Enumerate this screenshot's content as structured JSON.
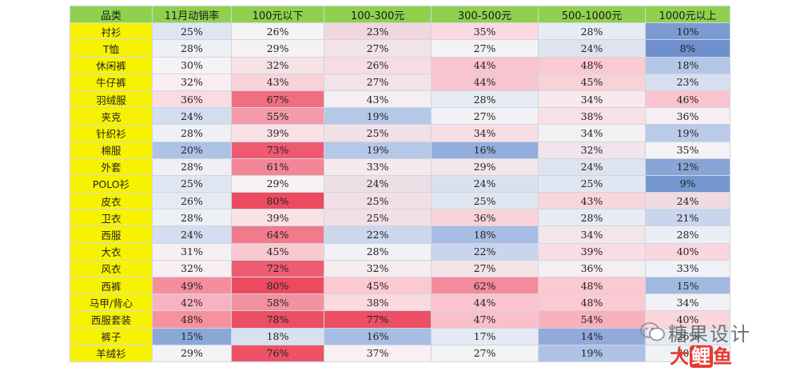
{
  "table": {
    "headers": [
      "品类",
      "11月动销率",
      "100元以下",
      "100-300元",
      "300-500元",
      "500-1000元",
      "1000元以上"
    ],
    "rows": [
      {
        "category": "衬衫",
        "values": [
          "25%",
          "26%",
          "23%",
          "35%",
          "28%",
          "10%"
        ],
        "bg": [
          "#dfe6f1",
          "#f4f3f6",
          "#f0d6de",
          "#fbd9e0",
          "#e7ebf4",
          "#7b9bd2"
        ],
        "red": [
          false,
          false,
          true,
          true,
          false,
          false
        ]
      },
      {
        "category": "T恤",
        "values": [
          "28%",
          "29%",
          "27%",
          "27%",
          "24%",
          "8%"
        ],
        "bg": [
          "#eef0f5",
          "#f6f2f4",
          "#f3e3e8",
          "#f3f2f5",
          "#dde4f0",
          "#6e90cc"
        ],
        "red": [
          false,
          false,
          true,
          false,
          false,
          false
        ]
      },
      {
        "category": "休闲裤",
        "values": [
          "30%",
          "32%",
          "26%",
          "44%",
          "48%",
          "18%"
        ],
        "bg": [
          "#f6f3f5",
          "#f4e2e6",
          "#f5dde3",
          "#f9c4cf",
          "#fbc9d2",
          "#b3c6e6"
        ],
        "red": [
          false,
          false,
          true,
          true,
          false,
          false
        ]
      },
      {
        "category": "牛仔裤",
        "values": [
          "32%",
          "43%",
          "27%",
          "44%",
          "45%",
          "23%"
        ],
        "bg": [
          "#f8eef1",
          "#fad2da",
          "#f3e3e8",
          "#f9c4cf",
          "#f8d1d9",
          "#d5dff0"
        ],
        "red": [
          false,
          false,
          true,
          false,
          false,
          false
        ]
      },
      {
        "category": "羽绒服",
        "values": [
          "36%",
          "67%",
          "43%",
          "28%",
          "34%",
          "46%"
        ],
        "bg": [
          "#fbdbe1",
          "#f06e80",
          "#f5eff3",
          "#e6ebf4",
          "#f8e9ee",
          "#fbc3ce"
        ],
        "red": [
          false,
          false,
          false,
          false,
          true,
          true
        ]
      },
      {
        "category": "夹克",
        "values": [
          "24%",
          "55%",
          "19%",
          "27%",
          "38%",
          "36%"
        ],
        "bg": [
          "#d3ddf0",
          "#f49aa8",
          "#b5c8e7",
          "#f2f1f6",
          "#f8e0e6",
          "#f5eef2"
        ],
        "red": [
          false,
          false,
          true,
          false,
          false,
          false
        ]
      },
      {
        "category": "针织衫",
        "values": [
          "28%",
          "39%",
          "25%",
          "34%",
          "34%",
          "19%"
        ],
        "bg": [
          "#eef0f5",
          "#f9e1e6",
          "#f2e0e6",
          "#f8dde3",
          "#f3f0f4",
          "#b9cbe8"
        ],
        "red": [
          false,
          false,
          true,
          true,
          false,
          false
        ]
      },
      {
        "category": "棉服",
        "values": [
          "20%",
          "73%",
          "19%",
          "16%",
          "32%",
          "35%"
        ],
        "bg": [
          "#aec2e5",
          "#ee5a6f",
          "#b5c8e7",
          "#93addc",
          "#f1e4ea",
          "#f3f2f6"
        ],
        "red": [
          false,
          true,
          false,
          true,
          true,
          false
        ]
      },
      {
        "category": "外套",
        "values": [
          "28%",
          "61%",
          "33%",
          "29%",
          "24%",
          "12%"
        ],
        "bg": [
          "#eef0f5",
          "#f28596",
          "#f8e9ee",
          "#f3e6eb",
          "#dde4f0",
          "#87a5d6"
        ],
        "red": [
          false,
          false,
          true,
          true,
          false,
          false
        ]
      },
      {
        "category": "POLO衫",
        "values": [
          "25%",
          "29%",
          "24%",
          "24%",
          "25%",
          "9%"
        ],
        "bg": [
          "#dfe6f1",
          "#f6f2f4",
          "#ecdfe6",
          "#d9e1f0",
          "#e1e7f2",
          "#7597cf"
        ],
        "red": [
          false,
          false,
          true,
          false,
          false,
          false
        ]
      },
      {
        "category": "皮衣",
        "values": [
          "26%",
          "80%",
          "25%",
          "25%",
          "43%",
          "24%"
        ],
        "bg": [
          "#e6eaf3",
          "#ec4a5f",
          "#f2e0e6",
          "#e1e7f2",
          "#f9d5dc",
          "#f0dbe3"
        ],
        "red": [
          false,
          true,
          false,
          false,
          false,
          true
        ]
      },
      {
        "category": "卫衣",
        "values": [
          "28%",
          "39%",
          "25%",
          "36%",
          "28%",
          "21%"
        ],
        "bg": [
          "#eef0f5",
          "#f9e1e6",
          "#f2e0e6",
          "#f9d2da",
          "#e7ebf4",
          "#c8d5ed"
        ],
        "red": [
          false,
          false,
          true,
          false,
          false,
          false
        ]
      },
      {
        "category": "西服",
        "values": [
          "24%",
          "64%",
          "22%",
          "18%",
          "34%",
          "28%"
        ],
        "bg": [
          "#d3ddf0",
          "#f17a8c",
          "#cbd7ec",
          "#a8bde3",
          "#f3e6eb",
          "#eceef5"
        ],
        "red": [
          false,
          false,
          false,
          false,
          true,
          false
        ]
      },
      {
        "category": "大衣",
        "values": [
          "31%",
          "45%",
          "28%",
          "22%",
          "39%",
          "40%"
        ],
        "bg": [
          "#f7f0f3",
          "#f9c9d2",
          "#f2f1f6",
          "#c8d5ed",
          "#f9dde3",
          "#fbd6dd"
        ],
        "red": [
          false,
          false,
          false,
          false,
          true,
          true
        ]
      },
      {
        "category": "风衣",
        "values": [
          "32%",
          "72%",
          "32%",
          "27%",
          "36%",
          "33%"
        ],
        "bg": [
          "#f8eef1",
          "#ee5c71",
          "#f6ecf0",
          "#f3e3e8",
          "#f5eef2",
          "#f0f1f6"
        ],
        "red": [
          false,
          true,
          true,
          true,
          false,
          false
        ]
      },
      {
        "category": "西裤",
        "values": [
          "49%",
          "80%",
          "45%",
          "62%",
          "48%",
          "15%"
        ],
        "bg": [
          "#f68d9d",
          "#ec4a5f",
          "#fbc9d2",
          "#f58a9a",
          "#fbc9d2",
          "#a1b8e0"
        ],
        "red": [
          false,
          true,
          true,
          false,
          false,
          false
        ]
      },
      {
        "category": "马甲/背心",
        "values": [
          "42%",
          "58%",
          "38%",
          "44%",
          "48%",
          "34%"
        ],
        "bg": [
          "#f9b3c0",
          "#f3919f",
          "#fbd9e0",
          "#f9c4cf",
          "#fbc9d2",
          "#f2f1f6"
        ],
        "red": [
          false,
          false,
          true,
          false,
          false,
          false
        ]
      },
      {
        "category": "西服套装",
        "values": [
          "48%",
          "78%",
          "77%",
          "47%",
          "54%",
          "40%"
        ],
        "bg": [
          "#f7919f",
          "#ec4f64",
          "#ed4f65",
          "#f9bfca",
          "#f8b0bd",
          "#fbd6dd"
        ],
        "red": [
          false,
          true,
          false,
          false,
          true,
          false
        ]
      },
      {
        "category": "裤子",
        "values": [
          "15%",
          "18%",
          "16%",
          "17%",
          "14%",
          "26%"
        ],
        "bg": [
          "#8aa7d8",
          "#d8e1f0",
          "#a7bde3",
          "#e4e9f3",
          "#91aadb",
          "#e5eaf4"
        ],
        "red": [
          false,
          false,
          false,
          true,
          false,
          false
        ]
      },
      {
        "category": "羊绒衫",
        "values": [
          "29%",
          "76%",
          "37%",
          "27%",
          "19%",
          "30%"
        ],
        "bg": [
          "#f3f2f5",
          "#ed5266",
          "#f8f0f3",
          "#f3f2f5",
          "#aec2e5",
          "#f1f2f6"
        ],
        "red": [
          false,
          true,
          false,
          false,
          false,
          false
        ]
      }
    ]
  },
  "watermark": {
    "brand": "糖果设计",
    "logo_parts": [
      "大",
      "鲤",
      "鱼"
    ],
    "logo_colors": [
      "#e8392f",
      "#e8392f"
    ]
  }
}
